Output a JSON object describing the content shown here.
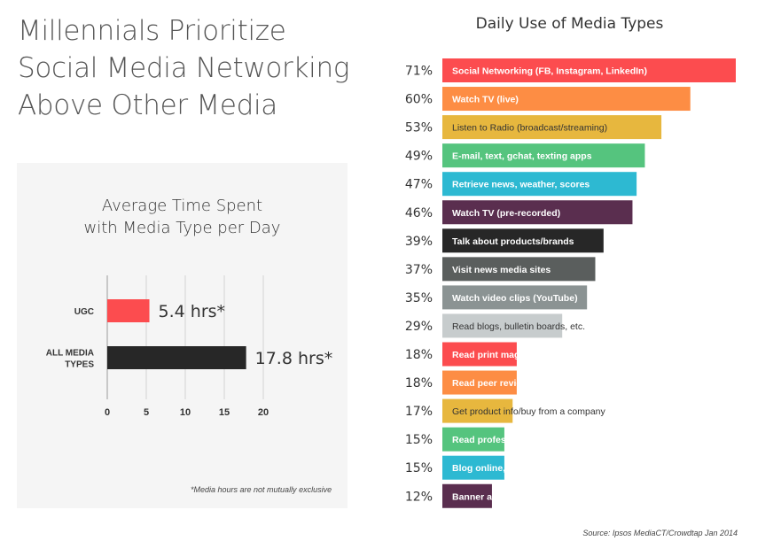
{
  "headline": {
    "line1": "Millennials Prioritize",
    "line2": "Social Media Networking",
    "line3": "Above Other Media"
  },
  "footnote": "*Media hours are not mutually exclusive",
  "source": "Source: Ipsos MediaCT/Crowdtap Jan 2014",
  "colors": {
    "red": "#fc4c4f",
    "orange": "#fd8d44",
    "yellow": "#e7b73e",
    "green": "#55c47e",
    "cyan": "#2db9d2",
    "plum": "#5a2e4f",
    "black": "#272727",
    "darkgray": "#5a5e5d",
    "midgray": "#8b9393",
    "lightgray": "#c7cccd"
  },
  "chart_data": [
    {
      "type": "bar",
      "orientation": "horizontal",
      "title_line1": "Average Time Spent",
      "title_line2": "with Media Type per Day",
      "categories": [
        "UGC",
        "ALL MEDIA TYPES"
      ],
      "category_lines": [
        [
          "UGC"
        ],
        [
          "ALL MEDIA",
          "TYPES"
        ]
      ],
      "values": [
        5.4,
        17.8
      ],
      "data_labels": [
        "5.4 hrs*",
        "17.8 hrs*"
      ],
      "bar_colors": [
        "#fc4c4f",
        "#272727"
      ],
      "xlim": [
        0,
        20
      ],
      "xticks": [
        0,
        5,
        10,
        15,
        20
      ],
      "grid": true
    },
    {
      "type": "bar",
      "orientation": "horizontal",
      "title": "Daily Use of Media Types",
      "categories": [
        "Social Networking (FB, Instagram, LinkedIn)",
        "Watch TV (live)",
        "Listen to Radio (broadcast/streaming)",
        "E-mail, text, gchat, texting apps",
        "Retrieve news, weather, scores",
        "Watch TV (pre-recorded)",
        "Talk about products/brands",
        "Visit news media sites",
        "Watch video clips (YouTube)",
        "Read blogs, bulletin boards, etc.",
        "Read print magazines or newspapers",
        "Read peer reviews (epinions)",
        "Get product info/buy from a company",
        "Read profesional reviews (CNET)",
        "Blog online, post to bulletin boards",
        "Banner ad"
      ],
      "values": [
        71,
        60,
        53,
        49,
        47,
        46,
        39,
        37,
        35,
        29,
        18,
        18,
        17,
        15,
        15,
        12
      ],
      "value_labels": [
        "71%",
        "60%",
        "53%",
        "49%",
        "47%",
        "46%",
        "39%",
        "37%",
        "35%",
        "29%",
        "18%",
        "18%",
        "17%",
        "15%",
        "15%",
        "12%"
      ],
      "bar_colors": [
        "#fc4c4f",
        "#fd8d44",
        "#e7b73e",
        "#55c47e",
        "#2db9d2",
        "#5a2e4f",
        "#272727",
        "#5a5e5d",
        "#8b9393",
        "#c7cccd",
        "#fc4c4f",
        "#fd8d44",
        "#e7b73e",
        "#55c47e",
        "#2db9d2",
        "#5a2e4f"
      ],
      "label_colors": [
        "#ffffff",
        "#ffffff",
        "#333333",
        "#ffffff",
        "#ffffff",
        "#ffffff",
        "#ffffff",
        "#ffffff",
        "#ffffff",
        "#333333",
        "#ffffff",
        "#ffffff",
        "#333333",
        "#ffffff",
        "#ffffff",
        "#ffffff"
      ]
    }
  ]
}
